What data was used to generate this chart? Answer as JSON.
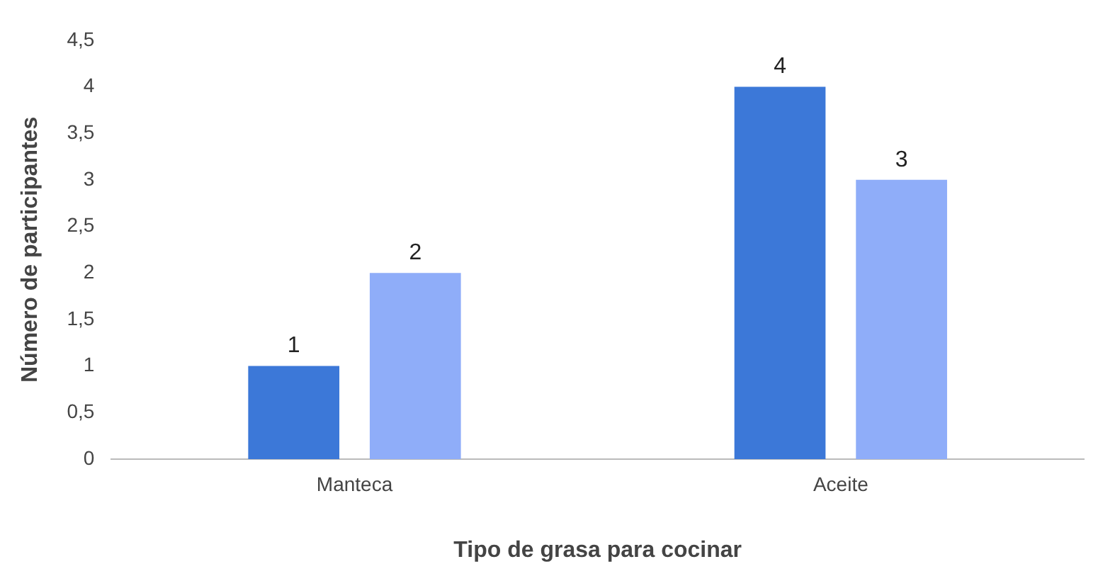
{
  "chart_data": {
    "type": "bar",
    "xlabel": "Tipo de grasa para cocinar",
    "ylabel": "Número de participantes",
    "categories": [
      "Manteca",
      "Aceite"
    ],
    "series": [
      {
        "color": "#3c78d8",
        "values": [
          1,
          4
        ]
      },
      {
        "color": "#8fadf9",
        "values": [
          2,
          3
        ]
      }
    ],
    "ylim": [
      0,
      4.5
    ],
    "yticks": [
      0,
      {
        "value": 0.5,
        "label": "0,5"
      },
      1,
      {
        "value": 1.5,
        "label": "1,5"
      },
      2,
      {
        "value": 2.5,
        "label": "2,5"
      },
      3,
      {
        "value": 3.5,
        "label": "3,5"
      },
      4,
      {
        "value": 4.5,
        "label": "4,5"
      }
    ],
    "data_labels": true,
    "grid": false,
    "legend": false
  }
}
